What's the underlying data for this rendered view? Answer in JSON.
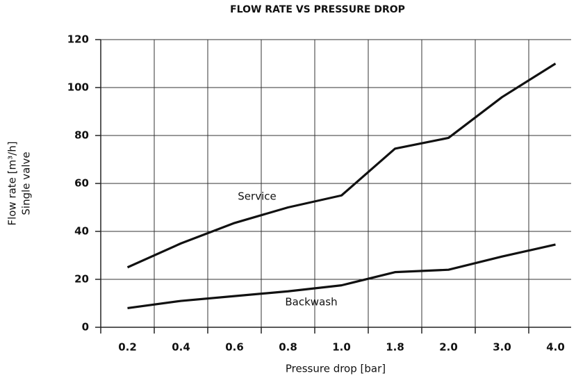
{
  "chart_data": {
    "type": "line",
    "title": "FLOW RATE VS PRESSURE DROP",
    "x_label": "Pressure drop [bar]",
    "y_label": [
      "Flow rate [m³/h]",
      "Single valve"
    ],
    "categories": [
      "0.2",
      "0.4",
      "0.6",
      "0.8",
      "1.0",
      "1.8",
      "2.0",
      "3.0",
      "4.0"
    ],
    "series": [
      {
        "name": "Service",
        "color": "#111111",
        "values": [
          25,
          35,
          43.5,
          50,
          55,
          74.5,
          79,
          96,
          110
        ]
      },
      {
        "name": "Backwash",
        "color": "#111111",
        "values": [
          8,
          11,
          13,
          15,
          17.5,
          23,
          24,
          29.5,
          34.5
        ]
      }
    ],
    "ylim": [
      0,
      120
    ],
    "yticks": [
      0,
      20,
      40,
      60,
      80,
      100,
      120
    ],
    "grid": true
  }
}
